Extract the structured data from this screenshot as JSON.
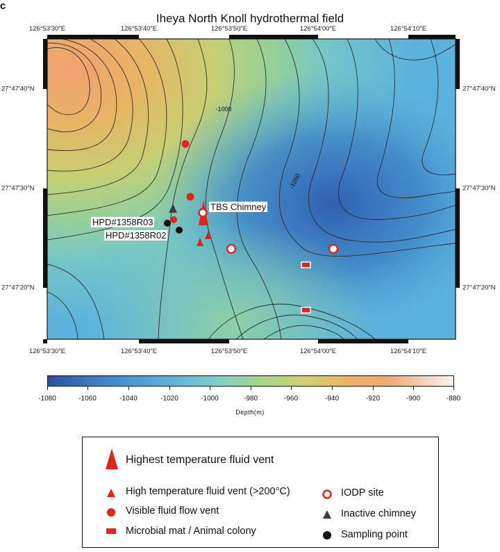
{
  "panel_letter": "c",
  "title": "Iheya North Knoll hydrothermal field",
  "longitude_ticks": [
    "126°53′30″E",
    "126°53′40″E",
    "126°53′50″E",
    "126°54′00″E",
    "126°54′10″E"
  ],
  "latitude_ticks": [
    "27°47′40″N",
    "27°47′30″N",
    "27°47′20″N"
  ],
  "contour_labels": [
    "-1000",
    "-1050"
  ],
  "site_labels": {
    "tbs": "TBS Chimney",
    "r03": "HPD#1358R03",
    "r02": "HPD#1358R02"
  },
  "colorbar": {
    "ticks": [
      "-1080",
      "-1060",
      "-1040",
      "-1020",
      "-1000",
      "-980",
      "-960",
      "-940",
      "-920",
      "-900",
      "-880"
    ],
    "label": "Depth(m)",
    "colors": [
      "#2d4fa0",
      "#53aede",
      "#a4d58a",
      "#edb45e",
      "#fbf4ef"
    ]
  },
  "legend": {
    "highest_temp": "Highest temperature fluid vent",
    "high_temp": "High temperature fluid vent (>200°C)",
    "visible_flow": "Visible fluid flow vent",
    "microbial_mat": "Microbial mat / Animal colony",
    "iodp": "IODP site",
    "inactive": "Inactive chimney",
    "sampling": "Sampling point"
  },
  "colors": {
    "vent_red": "#e0261c",
    "inactive_gray": "#3a3a4a",
    "sampling_black": "#111111"
  }
}
